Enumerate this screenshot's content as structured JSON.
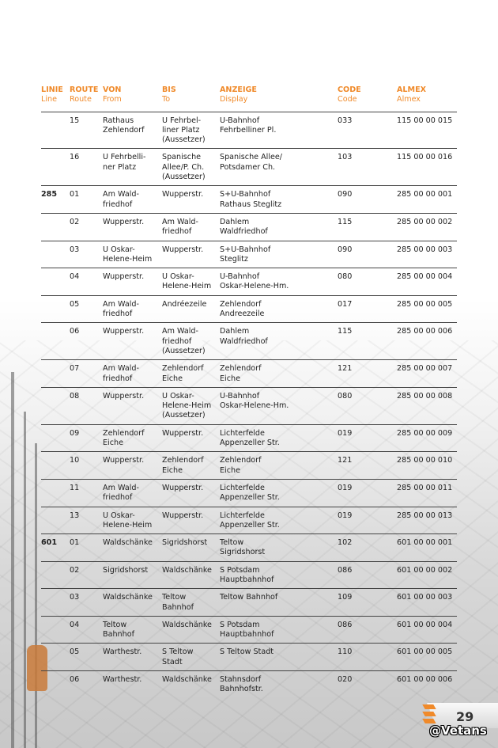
{
  "headers": [
    {
      "de": "LINIE",
      "en": "Line"
    },
    {
      "de": "ROUTE",
      "en": "Route"
    },
    {
      "de": "VON",
      "en": "From"
    },
    {
      "de": "BIS",
      "en": "To"
    },
    {
      "de": "ANZEIGE",
      "en": "Display"
    },
    {
      "de": "CODE",
      "en": "Code"
    },
    {
      "de": "ALMEX",
      "en": "Almex"
    }
  ],
  "rows": [
    [
      "",
      "15",
      "Rathaus\nZehlendorf",
      "U Fehrbel-\nliner Platz\n(Aussetzer)",
      "U-Bahnhof\nFehrbelliner Pl.",
      "033",
      "115 00 00 015"
    ],
    [
      "",
      "16",
      "U Fehrbelli-\nner Platz",
      "Spanische\nAllee/P. Ch.\n(Aussetzer)",
      "Spanische Allee/\nPotsdamer Ch.",
      "103",
      "115 00 00 016"
    ],
    [
      "285",
      "01",
      "Am Wald-\nfriedhof",
      "Wupperstr.",
      "S+U-Bahnhof\nRathaus Steglitz",
      "090",
      "285 00 00 001"
    ],
    [
      "",
      "02",
      "Wupperstr.",
      "Am Wald-\nfriedhof",
      "Dahlem\nWaldfriedhof",
      "115",
      "285 00 00 002"
    ],
    [
      "",
      "03",
      "U Oskar-\nHelene-Heim",
      "Wupperstr.",
      "S+U-Bahnhof\nSteglitz",
      "090",
      "285 00 00 003"
    ],
    [
      "",
      "04",
      "Wupperstr.",
      "U Oskar-\nHelene-Heim",
      "U-Bahnhof\nOskar-Helene-Hm.",
      "080",
      "285 00 00 004"
    ],
    [
      "",
      "05",
      "Am Wald-\nfriedhof",
      "Andréezeile",
      "Zehlendorf\nAndreezeile",
      "017",
      "285 00 00 005"
    ],
    [
      "",
      "06",
      "Wupperstr.",
      "Am Wald-\nfriedhof\n(Aussetzer)",
      "Dahlem\nWaldfriedhof",
      "115",
      "285 00 00 006"
    ],
    [
      "",
      "07",
      "Am Wald-\nfriedhof",
      "Zehlendorf\nEiche",
      "Zehlendorf\nEiche",
      "121",
      "285 00 00 007"
    ],
    [
      "",
      "08",
      "Wupperstr.",
      "U Oskar-\nHelene-Heim\n(Aussetzer)",
      "U-Bahnhof\nOskar-Helene-Hm.",
      "080",
      "285 00 00 008"
    ],
    [
      "",
      "09",
      "Zehlendorf\nEiche",
      "Wupperstr.",
      "Lichterfelde\nAppenzeller Str.",
      "019",
      "285 00 00 009"
    ],
    [
      "",
      "10",
      "Wupperstr.",
      "Zehlendorf\nEiche",
      "Zehlendorf\nEiche",
      "121",
      "285 00 00 010"
    ],
    [
      "",
      "11",
      "Am Wald-\nfriedhof",
      "Wupperstr.",
      "Lichterfelde\nAppenzeller Str.",
      "019",
      "285 00 00 011"
    ],
    [
      "",
      "13",
      "U Oskar-\nHelene-Heim",
      "Wupperstr.",
      "Lichterfelde\nAppenzeller Str.",
      "019",
      "285 00 00 013"
    ],
    [
      "601",
      "01",
      "Waldschänke",
      "Sigridshorst",
      "Teltow\nSigridshorst",
      "102",
      "601 00 00 001"
    ],
    [
      "",
      "02",
      "Sigridshorst",
      "Waldschänke",
      "S Potsdam\nHauptbahnhof",
      "086",
      "601 00 00 002"
    ],
    [
      "",
      "03",
      "Waldschänke",
      "Teltow\nBahnhof",
      "Teltow Bahnhof",
      "109",
      "601 00 00 003"
    ],
    [
      "",
      "04",
      "Teltow\nBahnhof",
      "Waldschänke",
      "S Potsdam\nHauptbahnhof",
      "086",
      "601 00 00 004"
    ],
    [
      "",
      "05",
      "Warthestr.",
      "S Teltow\nStadt",
      "S Teltow Stadt",
      "110",
      "601 00 00 005"
    ],
    [
      "",
      "06",
      "Warthestr.",
      "Waldschänke",
      "Stahnsdorf\nBahnhofstr.",
      "020",
      "601 00 00 006"
    ]
  ],
  "page_number": "29",
  "watermark": "@Vetans",
  "colors": {
    "accent": "#f08a2a",
    "text": "#222222"
  }
}
